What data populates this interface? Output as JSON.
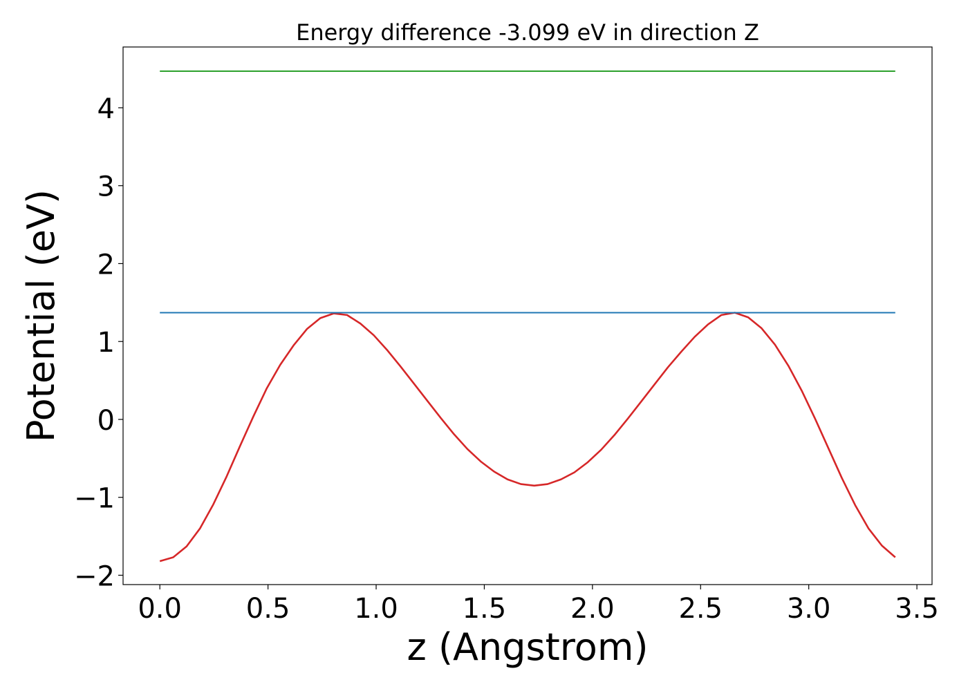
{
  "chart_data": {
    "type": "line",
    "title": "Energy difference -3.099 eV in direction Z",
    "xlabel": "z (Angstrom)",
    "ylabel": "Potential (eV)",
    "xlim": [
      -0.17,
      3.57
    ],
    "ylim": [
      -2.12,
      4.78
    ],
    "xticks": [
      0.0,
      0.5,
      1.0,
      1.5,
      2.0,
      2.5,
      3.0,
      3.5
    ],
    "xtick_labels": [
      "0.0",
      "0.5",
      "1.0",
      "1.5",
      "2.0",
      "2.5",
      "3.0",
      "3.5"
    ],
    "yticks": [
      -2,
      -1,
      0,
      1,
      2,
      3,
      4
    ],
    "ytick_labels": [
      "−2",
      "−1",
      "0",
      "1",
      "2",
      "3",
      "4"
    ],
    "grid": false,
    "legend": "none",
    "series": [
      {
        "color": "#d62728",
        "x": [
          0.0,
          0.0618,
          0.1236,
          0.1855,
          0.2473,
          0.3091,
          0.3709,
          0.4327,
          0.4945,
          0.5564,
          0.6182,
          0.68,
          0.7418,
          0.8036,
          0.8655,
          0.9273,
          0.9891,
          1.0509,
          1.1127,
          1.1745,
          1.2364,
          1.2982,
          1.36,
          1.4218,
          1.4836,
          1.5455,
          1.6073,
          1.6691,
          1.7309,
          1.7927,
          1.8545,
          1.9164,
          1.9782,
          2.04,
          2.1018,
          2.1636,
          2.2255,
          2.2873,
          2.3491,
          2.4109,
          2.4727,
          2.5345,
          2.5964,
          2.6582,
          2.72,
          2.7818,
          2.8436,
          2.9055,
          2.9673,
          3.0291,
          3.0909,
          3.1527,
          3.2145,
          3.2764,
          3.3382,
          3.4
        ],
        "y": [
          -1.82,
          -1.77,
          -1.63,
          -1.4,
          -1.09,
          -0.73,
          -0.34,
          0.04,
          0.4,
          0.7,
          0.95,
          1.16,
          1.3,
          1.36,
          1.34,
          1.23,
          1.08,
          0.89,
          0.68,
          0.46,
          0.24,
          0.02,
          -0.19,
          -0.38,
          -0.54,
          -0.67,
          -0.77,
          -0.83,
          -0.85,
          -0.83,
          -0.77,
          -0.68,
          -0.55,
          -0.39,
          -0.2,
          0.01,
          0.23,
          0.45,
          0.67,
          0.87,
          1.06,
          1.22,
          1.34,
          1.37,
          1.31,
          1.17,
          0.96,
          0.69,
          0.37,
          0.01,
          -0.37,
          -0.75,
          -1.1,
          -1.4,
          -1.62,
          -1.77
        ]
      },
      {
        "color": "#1f77b4",
        "x": [
          0.0,
          3.4
        ],
        "y": [
          1.37,
          1.37
        ]
      },
      {
        "color": "#2ca02c",
        "x": [
          0.0,
          3.4
        ],
        "y": [
          4.47,
          4.47
        ]
      }
    ]
  }
}
